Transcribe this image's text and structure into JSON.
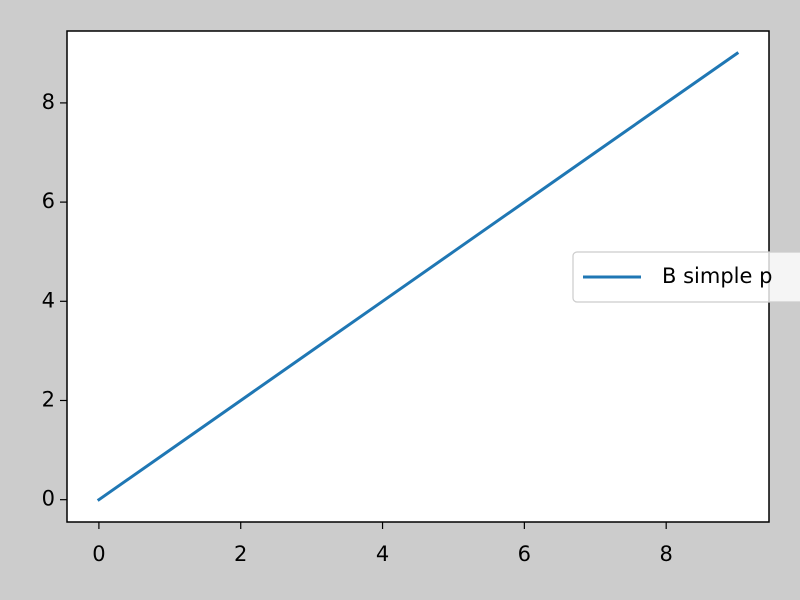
{
  "chart_data": {
    "type": "line",
    "x": [
      0,
      1,
      2,
      3,
      4,
      5,
      6,
      7,
      8,
      9
    ],
    "series": [
      {
        "name": "B simple p",
        "color": "#1f77b4",
        "values": [
          0,
          1,
          2,
          3,
          4,
          5,
          6,
          7,
          8,
          9
        ]
      }
    ],
    "xlim": [
      -0.45,
      9.45
    ],
    "ylim": [
      -0.45,
      9.45
    ],
    "xticks": [
      0,
      2,
      4,
      6,
      8
    ],
    "yticks": [
      0,
      2,
      4,
      6,
      8
    ],
    "grid": false,
    "legend_loc": "center right"
  }
}
